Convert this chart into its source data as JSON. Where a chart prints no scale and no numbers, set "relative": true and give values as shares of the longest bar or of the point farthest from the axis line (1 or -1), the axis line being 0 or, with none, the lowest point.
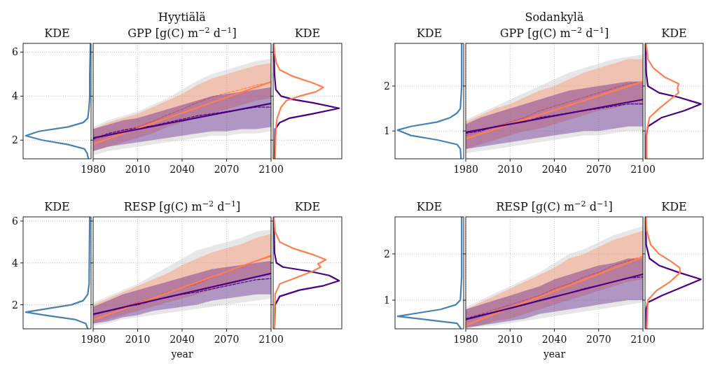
{
  "chart_data": [
    {
      "type": "line",
      "title": "KDE",
      "orientation": "horizontal",
      "relative": true,
      "ylim": [
        1.15,
        6.4
      ],
      "yticks": [
        2,
        4,
        6
      ],
      "grid": "y",
      "tick_labels": "y",
      "series": [
        {
          "color": "#4682b4",
          "x": [
            1.15,
            1.4,
            1.6,
            1.8,
            2.0,
            2.2,
            2.4,
            2.6,
            2.8,
            3.0,
            3.5,
            4,
            5,
            6.4
          ],
          "values": [
            -0.04,
            -0.06,
            -0.1,
            -0.35,
            -0.75,
            -1,
            -0.8,
            -0.35,
            -0.12,
            -0.05,
            -0.03,
            -0.02,
            -0.02,
            -0.01
          ]
        }
      ]
    },
    {
      "type": "line",
      "title": "Hyytiälä",
      "subtitle": "GPP [g(C) m$^{−2}$ d$^{−1}$]",
      "x": [
        1980,
        1990,
        2000,
        2010,
        2020,
        2030,
        2040,
        2050,
        2060,
        2070,
        2080,
        2090,
        2100
      ],
      "xlim": [
        1980,
        2100
      ],
      "xticks": [
        1980,
        2010,
        2040,
        2070,
        2100
      ],
      "ylim": [
        1.15,
        6.4
      ],
      "yticks": [
        2,
        4,
        6
      ],
      "grid": true,
      "tick_labels": "x",
      "series": [
        {
          "color": "#bbbbbb",
          "values": [
            null,
            null,
            null,
            null,
            null,
            null,
            null,
            null,
            null,
            null,
            null,
            null,
            null
          ],
          "lower": [
            1.3,
            1.5,
            1.6,
            1.7,
            1.8,
            1.9,
            2.0,
            2.1,
            2.2,
            2.2,
            2.3,
            2.3,
            2.4
          ],
          "upper": [
            2.6,
            2.9,
            3.1,
            3.3,
            3.6,
            3.9,
            4.3,
            4.7,
            5.0,
            5.2,
            5.4,
            5.6,
            5.7
          ]
        },
        {
          "color": "#ff7f50",
          "line_style": "dashed",
          "values": [
            2.0,
            2.2,
            2.45,
            2.6,
            2.85,
            3.15,
            3.4,
            3.7,
            3.95,
            4.15,
            4.3,
            4.5,
            4.62
          ],
          "lower": [
            1.5,
            1.7,
            1.9,
            2.1,
            2.3,
            2.6,
            2.8,
            3.0,
            3.2,
            3.4,
            3.6,
            3.8,
            3.9
          ],
          "upper": [
            2.5,
            2.8,
            3.0,
            3.2,
            3.5,
            3.8,
            4.1,
            4.5,
            4.8,
            5.0,
            5.2,
            5.4,
            5.5
          ]
        },
        {
          "color": "#4b0082",
          "line_style": "dashed",
          "values": [
            2.05,
            2.3,
            2.45,
            2.55,
            2.65,
            2.8,
            2.95,
            3.1,
            3.2,
            3.3,
            3.4,
            3.5,
            3.5
          ],
          "lower": [
            1.5,
            1.7,
            1.8,
            1.9,
            2.0,
            2.1,
            2.2,
            2.3,
            2.4,
            2.4,
            2.5,
            2.5,
            2.6
          ],
          "upper": [
            2.5,
            2.7,
            2.9,
            3.0,
            3.2,
            3.4,
            3.6,
            3.8,
            4.0,
            4.1,
            4.2,
            4.3,
            4.4
          ]
        },
        {
          "color": "#ff7f50",
          "line_style": "solid",
          "x": [
            1980,
            2100
          ],
          "values": [
            1.82,
            4.65
          ]
        },
        {
          "color": "#4b0082",
          "line_style": "solid",
          "x": [
            1980,
            2100
          ],
          "values": [
            2.1,
            3.67
          ]
        }
      ]
    },
    {
      "type": "line",
      "title": "KDE",
      "orientation": "horizontal",
      "relative": true,
      "ylim": [
        1.15,
        6.4
      ],
      "yticks": [
        2,
        4,
        6
      ],
      "grid": "y",
      "tick_labels": false,
      "series": [
        {
          "color": "#4b0082",
          "x": [
            1.15,
            2.5,
            2.8,
            3.0,
            3.2,
            3.45,
            3.7,
            3.85,
            4.0,
            4.3,
            5,
            6.4
          ],
          "values": [
            0.02,
            0.03,
            0.1,
            0.25,
            0.6,
            1,
            0.6,
            0.3,
            0.12,
            0.04,
            0.02,
            0.01
          ]
        },
        {
          "color": "#ff7f50",
          "x": [
            1.15,
            2.5,
            3.0,
            3.5,
            3.8,
            4.0,
            4.2,
            4.4,
            4.6,
            4.9,
            5.2,
            5.5,
            6.0,
            6.4
          ],
          "values": [
            0.03,
            0.04,
            0.06,
            0.12,
            0.2,
            0.4,
            0.65,
            0.76,
            0.6,
            0.3,
            0.1,
            0.05,
            0.02,
            0.01
          ]
        }
      ]
    },
    {
      "type": "line",
      "title": "KDE",
      "orientation": "horizontal",
      "relative": true,
      "ylim": [
        0.38,
        2.95
      ],
      "yticks": [
        1,
        2
      ],
      "grid": "y",
      "tick_labels": "y",
      "series": [
        {
          "color": "#4682b4",
          "x": [
            0.38,
            0.6,
            0.7,
            0.8,
            0.9,
            1.02,
            1.1,
            1.2,
            1.3,
            1.4,
            1.5,
            2,
            2.95
          ],
          "values": [
            -0.04,
            -0.05,
            -0.1,
            -0.4,
            -0.8,
            -1,
            -0.8,
            -0.4,
            -0.2,
            -0.1,
            -0.05,
            -0.03,
            -0.03
          ]
        }
      ]
    },
    {
      "type": "line",
      "title": "Sodankylä",
      "subtitle": "GPP [g(C) m$^{−2}$ d$^{−1}$]",
      "x": [
        1980,
        1990,
        2000,
        2010,
        2020,
        2030,
        2040,
        2050,
        2060,
        2070,
        2080,
        2090,
        2100
      ],
      "xlim": [
        1980,
        2100
      ],
      "xticks": [
        1980,
        2010,
        2040,
        2070,
        2100
      ],
      "ylim": [
        0.38,
        2.95
      ],
      "yticks": [
        1,
        2
      ],
      "grid": true,
      "tick_labels": "x",
      "series": [
        {
          "color": "#bbbbbb",
          "values": [
            null,
            null,
            null,
            null,
            null,
            null,
            null,
            null,
            null,
            null,
            null,
            null,
            null
          ],
          "lower": [
            0.5,
            0.55,
            0.6,
            0.65,
            0.7,
            0.75,
            0.8,
            0.85,
            0.9,
            0.9,
            0.95,
            1.0,
            1.0
          ],
          "upper": [
            1.25,
            1.4,
            1.55,
            1.7,
            1.85,
            2.0,
            2.15,
            2.3,
            2.4,
            2.5,
            2.6,
            2.65,
            2.7
          ]
        },
        {
          "color": "#ff7f50",
          "line_style": "dashed",
          "values": [
            0.9,
            1.0,
            1.1,
            1.2,
            1.3,
            1.45,
            1.55,
            1.65,
            1.75,
            1.85,
            1.95,
            2.05,
            2.1
          ],
          "lower": [
            0.6,
            0.7,
            0.8,
            0.9,
            1.0,
            1.05,
            1.15,
            1.25,
            1.35,
            1.45,
            1.5,
            1.6,
            1.6
          ],
          "upper": [
            1.2,
            1.35,
            1.5,
            1.6,
            1.75,
            1.9,
            2.0,
            2.15,
            2.3,
            2.4,
            2.5,
            2.6,
            2.6
          ]
        },
        {
          "color": "#4b0082",
          "line_style": "dashed",
          "values": [
            0.95,
            1.0,
            1.1,
            1.15,
            1.2,
            1.3,
            1.35,
            1.4,
            1.45,
            1.5,
            1.55,
            1.6,
            1.6
          ],
          "lower": [
            0.6,
            0.65,
            0.7,
            0.75,
            0.8,
            0.85,
            0.9,
            0.95,
            1.0,
            1.0,
            1.05,
            1.1,
            1.1
          ],
          "upper": [
            1.15,
            1.3,
            1.4,
            1.5,
            1.6,
            1.7,
            1.8,
            1.9,
            1.95,
            2.0,
            2.05,
            2.1,
            2.1
          ]
        },
        {
          "color": "#ff7f50",
          "line_style": "solid",
          "x": [
            1980,
            2100
          ],
          "values": [
            0.83,
            2.1
          ]
        },
        {
          "color": "#4b0082",
          "line_style": "solid",
          "x": [
            1980,
            2100
          ],
          "values": [
            0.97,
            1.7
          ]
        }
      ]
    },
    {
      "type": "line",
      "title": "KDE",
      "orientation": "horizontal",
      "relative": true,
      "ylim": [
        0.38,
        2.95
      ],
      "yticks": [
        1,
        2
      ],
      "grid": "y",
      "tick_labels": false,
      "series": [
        {
          "color": "#4b0082",
          "x": [
            0.38,
            0.9,
            1.1,
            1.3,
            1.45,
            1.6,
            1.75,
            1.85,
            2.0,
            2.3,
            2.95
          ],
          "values": [
            0.02,
            0.02,
            0.05,
            0.3,
            0.7,
            1,
            0.6,
            0.25,
            0.05,
            0.02,
            0.01
          ]
        },
        {
          "color": "#ff7f50",
          "x": [
            0.38,
            1.0,
            1.3,
            1.5,
            1.7,
            1.85,
            1.95,
            2.05,
            2.2,
            2.4,
            2.6,
            2.95
          ],
          "values": [
            0.03,
            0.03,
            0.08,
            0.25,
            0.45,
            0.6,
            0.58,
            0.6,
            0.35,
            0.15,
            0.05,
            0.02
          ]
        }
      ]
    },
    {
      "type": "line",
      "title": "KDE",
      "orientation": "horizontal",
      "relative": true,
      "ylim": [
        0.85,
        6.2
      ],
      "yticks": [
        2,
        4,
        6
      ],
      "grid": "y",
      "tick_labels": "y",
      "series": [
        {
          "color": "#4682b4",
          "x": [
            0.85,
            1.1,
            1.3,
            1.5,
            1.65,
            1.8,
            2.0,
            2.2,
            2.5,
            3,
            6.2
          ],
          "values": [
            -0.05,
            -0.08,
            -0.25,
            -0.7,
            -1,
            -0.7,
            -0.3,
            -0.12,
            -0.05,
            -0.03,
            -0.02
          ]
        }
      ]
    },
    {
      "type": "line",
      "title": "RESP [g(C) m$^{−2}$ d$^{−1}$]",
      "xlabel": "year",
      "x": [
        1980,
        1990,
        2000,
        2010,
        2020,
        2030,
        2040,
        2050,
        2060,
        2070,
        2080,
        2090,
        2100
      ],
      "xlim": [
        1980,
        2100
      ],
      "xticks": [
        1980,
        2010,
        2040,
        2070,
        2100
      ],
      "ylim": [
        0.85,
        6.2
      ],
      "yticks": [
        2,
        4,
        6
      ],
      "grid": true,
      "tick_labels": "x",
      "series": [
        {
          "color": "#bbbbbb",
          "values": [
            null,
            null,
            null,
            null,
            null,
            null,
            null,
            null,
            null,
            null,
            null,
            null,
            null
          ],
          "lower": [
            1.0,
            1.1,
            1.3,
            1.4,
            1.5,
            1.6,
            1.7,
            1.8,
            1.9,
            2.0,
            2.1,
            2.2,
            2.3
          ],
          "upper": [
            2.1,
            2.4,
            2.7,
            3.0,
            3.4,
            3.8,
            4.2,
            4.6,
            4.8,
            5.0,
            5.2,
            5.5,
            5.6
          ]
        },
        {
          "color": "#ff7f50",
          "line_style": "dashed",
          "values": [
            1.5,
            1.7,
            1.9,
            2.1,
            2.3,
            2.6,
            2.8,
            3.0,
            3.3,
            3.6,
            3.8,
            4.1,
            4.3
          ],
          "lower": [
            1.1,
            1.3,
            1.5,
            1.7,
            1.9,
            2.1,
            2.3,
            2.5,
            2.7,
            2.9,
            3.1,
            3.3,
            3.4
          ],
          "upper": [
            2.0,
            2.3,
            2.6,
            2.9,
            3.2,
            3.5,
            3.9,
            4.2,
            4.5,
            4.7,
            4.9,
            5.2,
            5.4
          ]
        },
        {
          "color": "#4b0082",
          "line_style": "dashed",
          "values": [
            1.55,
            1.7,
            1.85,
            2.0,
            2.2,
            2.35,
            2.5,
            2.6,
            2.75,
            2.9,
            3.05,
            3.2,
            3.25
          ],
          "lower": [
            1.1,
            1.2,
            1.4,
            1.5,
            1.7,
            1.8,
            1.9,
            2.0,
            2.2,
            2.3,
            2.4,
            2.5,
            2.5
          ],
          "upper": [
            1.9,
            2.2,
            2.5,
            2.7,
            2.9,
            3.1,
            3.3,
            3.5,
            3.7,
            3.8,
            3.9,
            4.0,
            4.1
          ]
        },
        {
          "color": "#ff7f50",
          "line_style": "solid",
          "x": [
            1980,
            2100
          ],
          "values": [
            1.28,
            4.35
          ]
        },
        {
          "color": "#4b0082",
          "line_style": "solid",
          "x": [
            1980,
            2100
          ],
          "values": [
            1.55,
            3.5
          ]
        }
      ]
    },
    {
      "type": "line",
      "title": "KDE",
      "orientation": "horizontal",
      "relative": true,
      "ylim": [
        0.85,
        6.2
      ],
      "yticks": [
        2,
        4,
        6
      ],
      "grid": "y",
      "tick_labels": false,
      "series": [
        {
          "color": "#4b0082",
          "x": [
            0.85,
            2.0,
            2.4,
            2.7,
            2.9,
            3.15,
            3.4,
            3.6,
            3.8,
            4.0,
            4.5,
            6.2
          ],
          "values": [
            0.02,
            0.03,
            0.1,
            0.4,
            0.75,
            1,
            0.85,
            0.55,
            0.15,
            0.05,
            0.02,
            0.01
          ]
        },
        {
          "color": "#ff7f50",
          "x": [
            0.85,
            2.5,
            3.0,
            3.3,
            3.6,
            3.8,
            3.95,
            4.15,
            4.4,
            4.7,
            5.0,
            5.5,
            6.2
          ],
          "values": [
            0.02,
            0.03,
            0.1,
            0.35,
            0.6,
            0.72,
            0.68,
            0.8,
            0.6,
            0.3,
            0.1,
            0.03,
            0.01
          ]
        }
      ]
    },
    {
      "type": "line",
      "title": "KDE",
      "orientation": "horizontal",
      "relative": true,
      "ylim": [
        0.38,
        2.8
      ],
      "yticks": [
        1,
        2
      ],
      "grid": "y",
      "tick_labels": "y",
      "series": [
        {
          "color": "#4682b4",
          "x": [
            0.38,
            0.5,
            0.6,
            0.65,
            0.72,
            0.8,
            0.9,
            1.0,
            1.5,
            2.8
          ],
          "values": [
            -0.04,
            -0.1,
            -0.7,
            -1,
            -0.7,
            -0.35,
            -0.12,
            -0.05,
            -0.03,
            -0.03
          ]
        }
      ]
    },
    {
      "type": "line",
      "title": "RESP [g(C) m$^{−2}$ d$^{−1}$]",
      "xlabel": "year",
      "x": [
        1980,
        1990,
        2000,
        2010,
        2020,
        2030,
        2040,
        2050,
        2060,
        2070,
        2080,
        2090,
        2100
      ],
      "xlim": [
        1980,
        2100
      ],
      "xticks": [
        1980,
        2010,
        2040,
        2070,
        2100
      ],
      "ylim": [
        0.38,
        2.8
      ],
      "yticks": [
        1,
        2
      ],
      "grid": true,
      "tick_labels": "x",
      "series": [
        {
          "color": "#bbbbbb",
          "values": [
            null,
            null,
            null,
            null,
            null,
            null,
            null,
            null,
            null,
            null,
            null,
            null,
            null
          ],
          "lower": [
            0.4,
            0.42,
            0.45,
            0.5,
            0.55,
            0.6,
            0.65,
            0.7,
            0.75,
            0.8,
            0.85,
            0.9,
            0.95
          ],
          "upper": [
            0.85,
            1.0,
            1.15,
            1.3,
            1.45,
            1.6,
            1.8,
            2.0,
            2.1,
            2.25,
            2.4,
            2.5,
            2.6
          ]
        },
        {
          "color": "#ff7f50",
          "line_style": "dashed",
          "values": [
            0.6,
            0.7,
            0.8,
            0.9,
            1.0,
            1.1,
            1.25,
            1.35,
            1.5,
            1.6,
            1.75,
            1.85,
            1.95
          ],
          "lower": [
            0.4,
            0.45,
            0.55,
            0.6,
            0.7,
            0.8,
            0.9,
            1.0,
            1.1,
            1.2,
            1.3,
            1.4,
            1.45
          ],
          "upper": [
            0.8,
            0.95,
            1.1,
            1.25,
            1.4,
            1.55,
            1.7,
            1.9,
            2.0,
            2.15,
            2.3,
            2.4,
            2.5
          ]
        },
        {
          "color": "#4b0082",
          "line_style": "dashed",
          "values": [
            0.6,
            0.68,
            0.75,
            0.82,
            0.9,
            1.0,
            1.08,
            1.15,
            1.25,
            1.32,
            1.4,
            1.48,
            1.5
          ],
          "lower": [
            0.4,
            0.45,
            0.5,
            0.55,
            0.6,
            0.7,
            0.75,
            0.8,
            0.85,
            0.9,
            0.95,
            1.0,
            1.0
          ],
          "upper": [
            0.8,
            0.9,
            1.0,
            1.1,
            1.2,
            1.3,
            1.45,
            1.55,
            1.65,
            1.75,
            1.8,
            1.9,
            1.9
          ]
        },
        {
          "color": "#ff7f50",
          "line_style": "solid",
          "x": [
            1980,
            2100
          ],
          "values": [
            0.46,
            1.93
          ]
        },
        {
          "color": "#4b0082",
          "line_style": "solid",
          "x": [
            1980,
            2100
          ],
          "values": [
            0.58,
            1.56
          ]
        }
      ]
    },
    {
      "type": "line",
      "title": "KDE",
      "orientation": "horizontal",
      "relative": true,
      "ylim": [
        0.38,
        2.8
      ],
      "yticks": [
        1,
        2
      ],
      "grid": "y",
      "tick_labels": false,
      "series": [
        {
          "color": "#4b0082",
          "x": [
            0.38,
            0.8,
            0.95,
            1.1,
            1.3,
            1.45,
            1.6,
            1.75,
            1.9,
            2.2,
            2.8
          ],
          "values": [
            0.02,
            0.02,
            0.05,
            0.3,
            0.7,
            1,
            0.6,
            0.25,
            0.08,
            0.02,
            0.01
          ]
        },
        {
          "color": "#ff7f50",
          "x": [
            0.38,
            1.0,
            1.2,
            1.4,
            1.6,
            1.7,
            1.85,
            2.0,
            2.2,
            2.5,
            2.8
          ],
          "values": [
            0.03,
            0.05,
            0.2,
            0.45,
            0.63,
            0.62,
            0.45,
            0.25,
            0.1,
            0.03,
            0.02
          ]
        }
      ]
    }
  ]
}
